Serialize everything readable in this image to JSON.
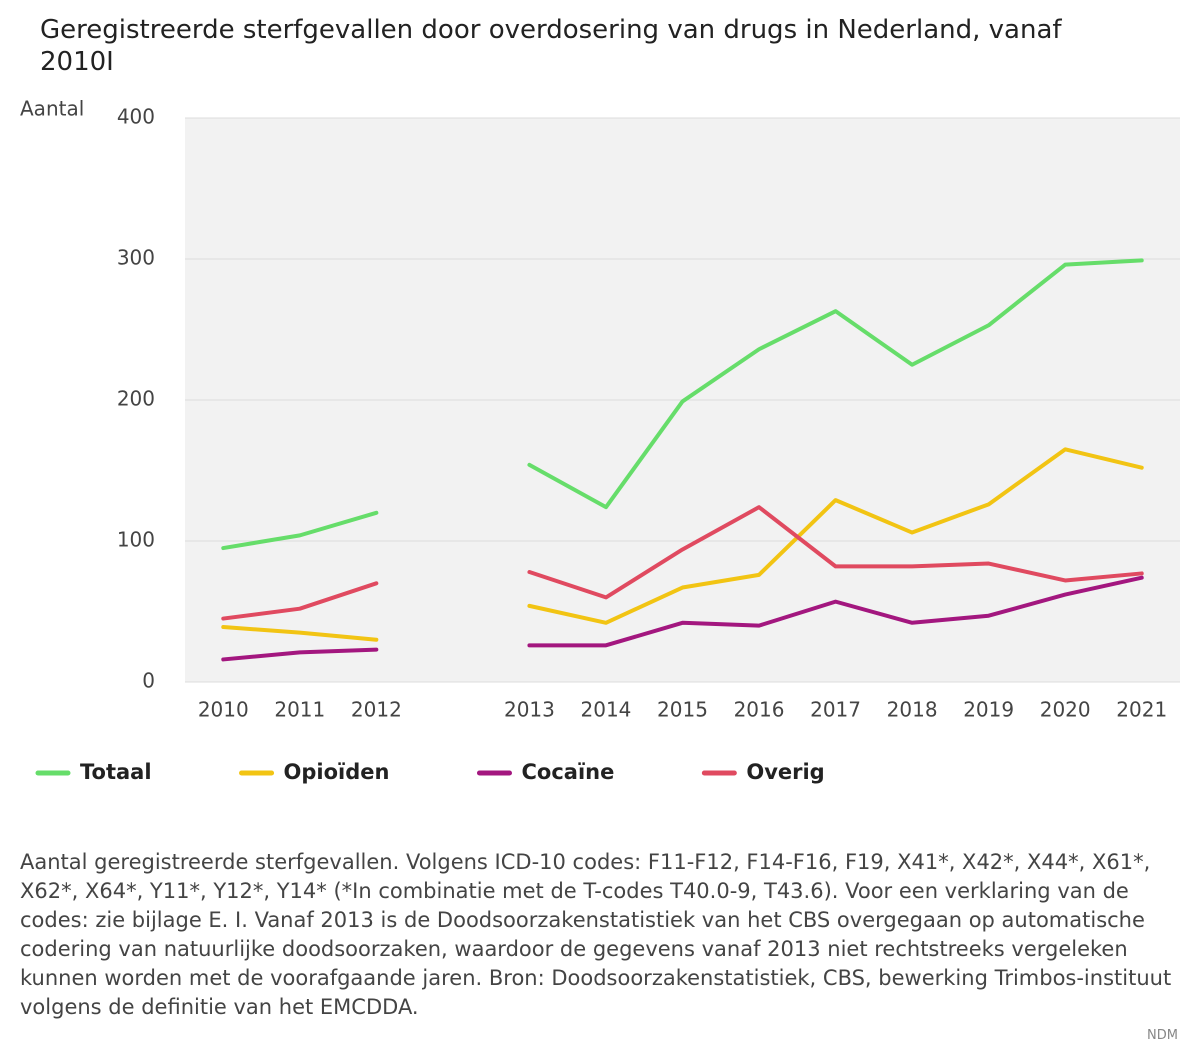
{
  "chart_data": {
    "type": "line",
    "title": "Geregistreerde sterfgevallen door overdosering van drugs in Nederland, vanaf 2010I",
    "y_label": "Aantal",
    "categories": [
      "2010",
      "2011",
      "2012",
      null,
      "2013",
      "2014",
      "2015",
      "2016",
      "2017",
      "2018",
      "2019",
      "2020",
      "2021"
    ],
    "series": [
      {
        "name": "Totaal",
        "color": "#66dd6a",
        "values": [
          95,
          104,
          120,
          null,
          154,
          124,
          199,
          236,
          263,
          225,
          253,
          296,
          299
        ]
      },
      {
        "name": "Opioïden",
        "color": "#f2c413",
        "values": [
          39,
          35,
          30,
          null,
          54,
          42,
          67,
          76,
          129,
          106,
          126,
          165,
          152
        ]
      },
      {
        "name": "Cocaïne",
        "color": "#a3177f",
        "values": [
          16,
          21,
          23,
          null,
          26,
          26,
          42,
          40,
          57,
          42,
          47,
          62,
          74
        ]
      },
      {
        "name": "Overig",
        "color": "#e04a60",
        "values": [
          45,
          52,
          70,
          null,
          78,
          60,
          94,
          124,
          82,
          82,
          84,
          72,
          77
        ]
      }
    ],
    "ylim": [
      0,
      400
    ],
    "yticks": [
      0,
      100,
      200,
      300,
      400
    ],
    "grid": true,
    "legend": "bottom",
    "note": "Aantal geregistreerde sterfgevallen. Volgens ICD-10 codes: F11-F12, F14-F16, F19, X41*, X42*, X44*, X61*, X62*, X64*, Y11*, Y12*, Y14* (*In combinatie met de T-codes T40.0-9, T43.6). Voor een verklaring van de codes: zie bijlage E. I. Vanaf 2013 is de Doodsoorzakenstatistiek van het CBS overgegaan op automatische codering van natuurlijke doodsoorzaken, waardoor de gegevens vanaf 2013 niet rechtstreeks vergeleken kunnen worden met de voorafgaande jaren. Bron: Doodsoorzakenstatistiek, CBS, bewerking Trimbos-instituut volgens de definitie van het EMCDDA.",
    "credit": "NDM"
  }
}
